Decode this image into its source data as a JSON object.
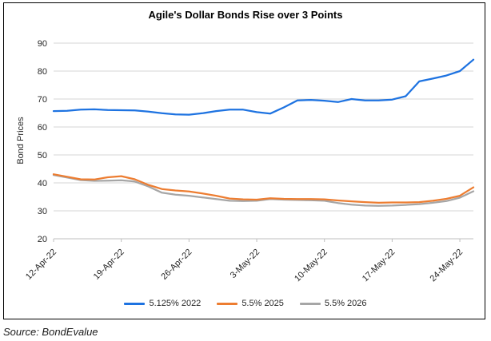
{
  "source": "Source: BondEvalue",
  "chart_data": {
    "type": "line",
    "title": "Agile's Dollar Bonds Rise over 3 Points",
    "xlabel": "",
    "ylabel": "Bond Prices",
    "ylim": [
      20,
      90
    ],
    "y_ticks": [
      20,
      30,
      40,
      50,
      60,
      70,
      80,
      90
    ],
    "grid": "horizontal",
    "legend_position": "bottom",
    "n_points": 32,
    "x_tick_labels": [
      "12-Apr-22",
      "19-Apr-22",
      "26-Apr-22",
      "3-May-22",
      "10-May-22",
      "17-May-22",
      "24-May-22"
    ],
    "x_tick_indices": [
      0,
      5,
      10,
      15,
      20,
      25,
      30
    ],
    "series": [
      {
        "name": "5.125% 2022",
        "color": "#1E73E1",
        "values": [
          65.7,
          65.8,
          66.2,
          66.3,
          66.1,
          66.0,
          65.9,
          65.5,
          64.9,
          64.5,
          64.4,
          64.9,
          65.7,
          66.2,
          66.2,
          65.3,
          64.8,
          67.0,
          69.5,
          69.7,
          69.4,
          68.9,
          70.0,
          69.5,
          69.5,
          69.8,
          71.0,
          76.3,
          77.3,
          78.4,
          80.0,
          84.1
        ]
      },
      {
        "name": "5.5% 2025",
        "color": "#ED7D31",
        "values": [
          43.1,
          42.2,
          41.3,
          41.2,
          42.0,
          42.4,
          41.3,
          39.3,
          37.8,
          37.3,
          36.9,
          36.2,
          35.4,
          34.4,
          34.1,
          34.0,
          34.5,
          34.3,
          34.2,
          34.2,
          34.1,
          33.7,
          33.4,
          33.1,
          32.9,
          33.0,
          33.0,
          33.1,
          33.6,
          34.3,
          35.4,
          38.4
        ]
      },
      {
        "name": "5.5% 2026",
        "color": "#A6A6A6",
        "values": [
          42.8,
          41.9,
          41.0,
          40.7,
          40.8,
          40.9,
          40.5,
          38.7,
          36.5,
          35.8,
          35.4,
          34.8,
          34.2,
          33.6,
          33.5,
          33.6,
          34.2,
          34.0,
          33.9,
          33.8,
          33.6,
          32.8,
          32.2,
          31.9,
          31.8,
          31.9,
          32.1,
          32.4,
          32.9,
          33.5,
          34.7,
          37.0
        ]
      }
    ],
    "axis_colors": {
      "gridline": "#D6D6D6",
      "axis": "#BFBFBF",
      "tick_text": "#262626"
    }
  }
}
